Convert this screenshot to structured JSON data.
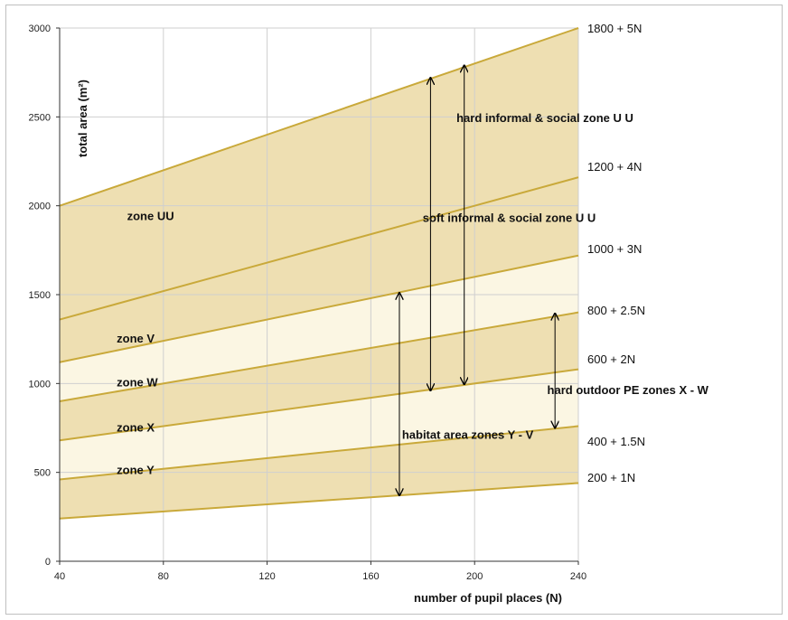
{
  "chart_data": {
    "type": "area",
    "title": "",
    "xlabel": "number of pupil places (N)",
    "ylabel": "total area (m²)",
    "xlim": [
      40,
      240
    ],
    "ylim": [
      0,
      3000
    ],
    "x_ticks": [
      "40",
      "80",
      "120",
      "160",
      "200",
      "240"
    ],
    "y_ticks": [
      "0",
      "500",
      "1000",
      "1500",
      "2000",
      "2500",
      "3000"
    ],
    "grid": true,
    "fill_colors": {
      "dark": "#eedfb2",
      "light": "#fbf6e3"
    },
    "line_color": "#c9a93a",
    "series": [
      {
        "name": "200 + 1N",
        "intercept": 200,
        "slope": 1
      },
      {
        "name": "400 + 1.5N",
        "intercept": 400,
        "slope": 1.5
      },
      {
        "name": "600 + 2N",
        "intercept": 600,
        "slope": 2
      },
      {
        "name": "800 + 2.5N",
        "intercept": 800,
        "slope": 2.5
      },
      {
        "name": "1000 + 3N",
        "intercept": 1000,
        "slope": 3
      },
      {
        "name": "1200 + 4N",
        "intercept": 1200,
        "slope": 4
      },
      {
        "name": "1800 + 5N",
        "intercept": 1800,
        "slope": 5
      }
    ],
    "zones": [
      {
        "label": "zone Y",
        "lower": 0,
        "upper": 1,
        "x": 62,
        "y": 490
      },
      {
        "label": "zone X",
        "lower": 1,
        "upper": 2,
        "x": 62,
        "y": 730
      },
      {
        "label": "zone W",
        "lower": 2,
        "upper": 3,
        "x": 62,
        "y": 985
      },
      {
        "label": "zone V",
        "lower": 3,
        "upper": 4,
        "x": 62,
        "y": 1230
      },
      {
        "label": "zone UU",
        "lower": 4,
        "upper": 6,
        "x": 66,
        "y": 1920
      }
    ],
    "arrows": [
      {
        "label": "habitat area zones Y - V",
        "x": 171,
        "y_from": 370,
        "y_to": 1510,
        "label_x": 172,
        "label_y": 690
      },
      {
        "label": "hard outdoor PE zones X - W",
        "x": 231,
        "y_from": 750,
        "y_to": 1395,
        "label_x": 228,
        "label_y": 940
      },
      {
        "label": "soft informal & social zone U U",
        "x": 183,
        "y_from": 960,
        "y_to": 2720,
        "label_x": 180,
        "label_y": 1910
      },
      {
        "label": "hard informal & social zone U U",
        "x": 196,
        "y_from": 995,
        "y_to": 2790,
        "label_x": 193,
        "label_y": 2470
      }
    ]
  }
}
